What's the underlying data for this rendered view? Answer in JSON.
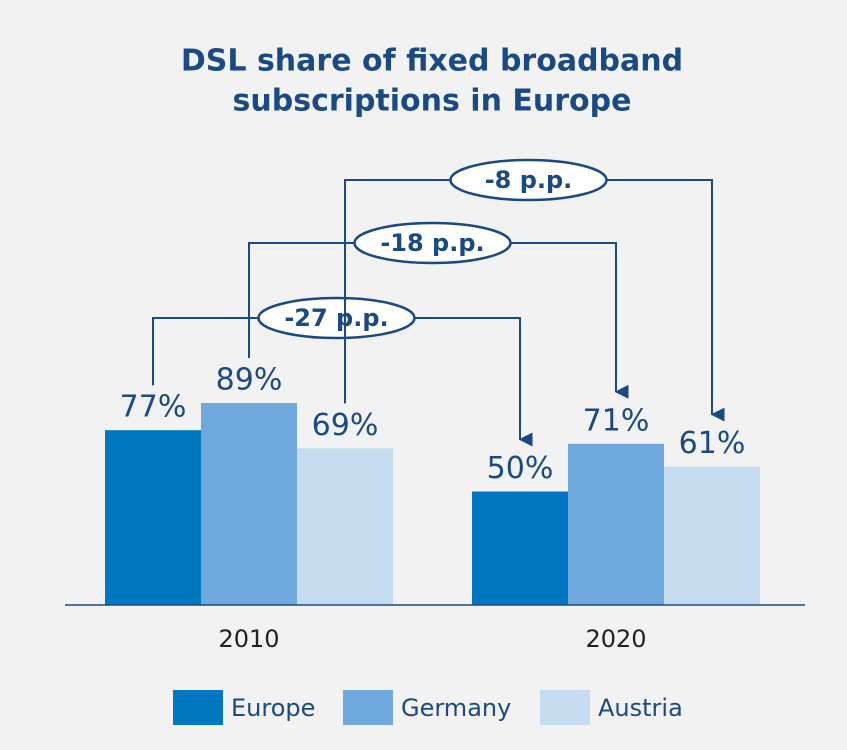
{
  "chart_data": {
    "type": "bar",
    "title": [
      "DSL share of fixed broadband",
      "subscriptions in Europe"
    ],
    "categories": [
      "2010",
      "2020"
    ],
    "series": [
      {
        "name": "Europe",
        "color": "#0077c0",
        "values": [
          77,
          50
        ],
        "value_labels": [
          "77%",
          "50%"
        ],
        "change_label": "-27 p.p."
      },
      {
        "name": "Germany",
        "color": "#6fa8dc",
        "values": [
          89,
          71
        ],
        "value_labels": [
          "89%",
          "71%"
        ],
        "change_label": "-18 p.p."
      },
      {
        "name": "Austria",
        "color": "#c5dbf0",
        "values": [
          69,
          61
        ],
        "value_labels": [
          "69%",
          "61%"
        ],
        "change_label": "-8 p.p."
      }
    ],
    "ylim": [
      0,
      100
    ]
  }
}
